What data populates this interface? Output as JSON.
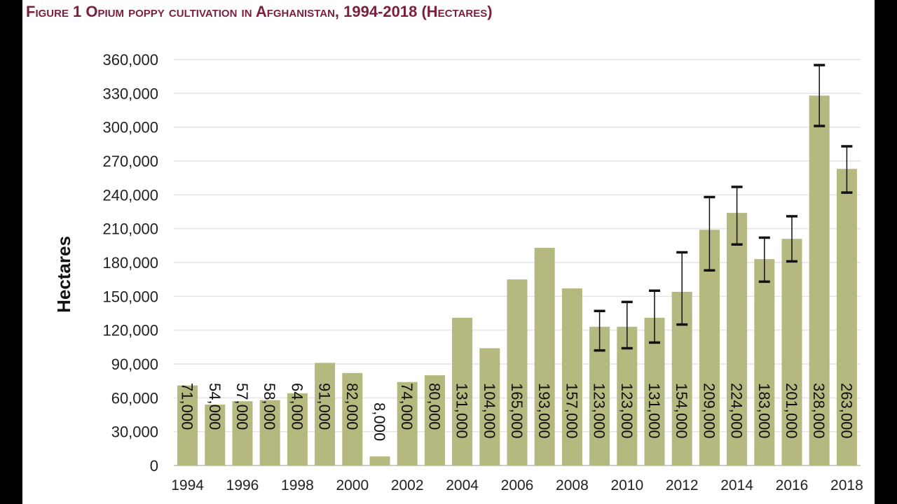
{
  "title": "Figure 1 Opium poppy cultivation in Afghanistan, 1994-2018 (Hectares)",
  "chart_data": {
    "type": "bar",
    "title": "Figure 1 Opium poppy cultivation in Afghanistan, 1994-2018 (Hectares)",
    "xlabel": "",
    "ylabel": "Hectares",
    "ylim": [
      0,
      360000
    ],
    "yticks": [
      0,
      30000,
      60000,
      90000,
      120000,
      150000,
      180000,
      210000,
      240000,
      270000,
      300000,
      330000,
      360000
    ],
    "ytick_labels": [
      "0",
      "30,000",
      "60,000",
      "90,000",
      "120,000",
      "150,000",
      "180,000",
      "210,000",
      "240,000",
      "270,000",
      "300,000",
      "330,000",
      "360,000"
    ],
    "xtick_labels": [
      "1994",
      "1996",
      "1998",
      "2000",
      "2002",
      "2004",
      "2006",
      "2008",
      "2010",
      "2012",
      "2014",
      "2016",
      "2018"
    ],
    "grid": true,
    "bar_color": "#b5b87f",
    "categories": [
      1994,
      1995,
      1996,
      1997,
      1998,
      1999,
      2000,
      2001,
      2002,
      2003,
      2004,
      2005,
      2006,
      2007,
      2008,
      2009,
      2010,
      2011,
      2012,
      2013,
      2014,
      2015,
      2016,
      2017,
      2018
    ],
    "values": [
      71000,
      54000,
      57000,
      58000,
      64000,
      91000,
      82000,
      8000,
      74000,
      80000,
      131000,
      104000,
      165000,
      193000,
      157000,
      123000,
      123000,
      131000,
      154000,
      209000,
      224000,
      183000,
      201000,
      328000,
      263000
    ],
    "data_labels": [
      "71,000",
      "54,000",
      "57,000",
      "58,000",
      "64,000",
      "91,000",
      "82,000",
      "8,000",
      "74,000",
      "80,000",
      "131,000",
      "104,000",
      "165,000",
      "193,000",
      "157,000",
      "123,000",
      "123,000",
      "131,000",
      "154,000",
      "209,000",
      "224,000",
      "183,000",
      "201,000",
      "328,000",
      "263,000"
    ],
    "error_bars": [
      {
        "year": 2009,
        "low": 102000,
        "high": 137000
      },
      {
        "year": 2010,
        "low": 104000,
        "high": 145000
      },
      {
        "year": 2011,
        "low": 109000,
        "high": 155000
      },
      {
        "year": 2012,
        "low": 125000,
        "high": 189000
      },
      {
        "year": 2013,
        "low": 173000,
        "high": 238000
      },
      {
        "year": 2014,
        "low": 196000,
        "high": 247000
      },
      {
        "year": 2015,
        "low": 163000,
        "high": 202000
      },
      {
        "year": 2016,
        "low": 181000,
        "high": 221000
      },
      {
        "year": 2017,
        "low": 301000,
        "high": 355000
      },
      {
        "year": 2018,
        "low": 242000,
        "high": 283000
      }
    ]
  }
}
